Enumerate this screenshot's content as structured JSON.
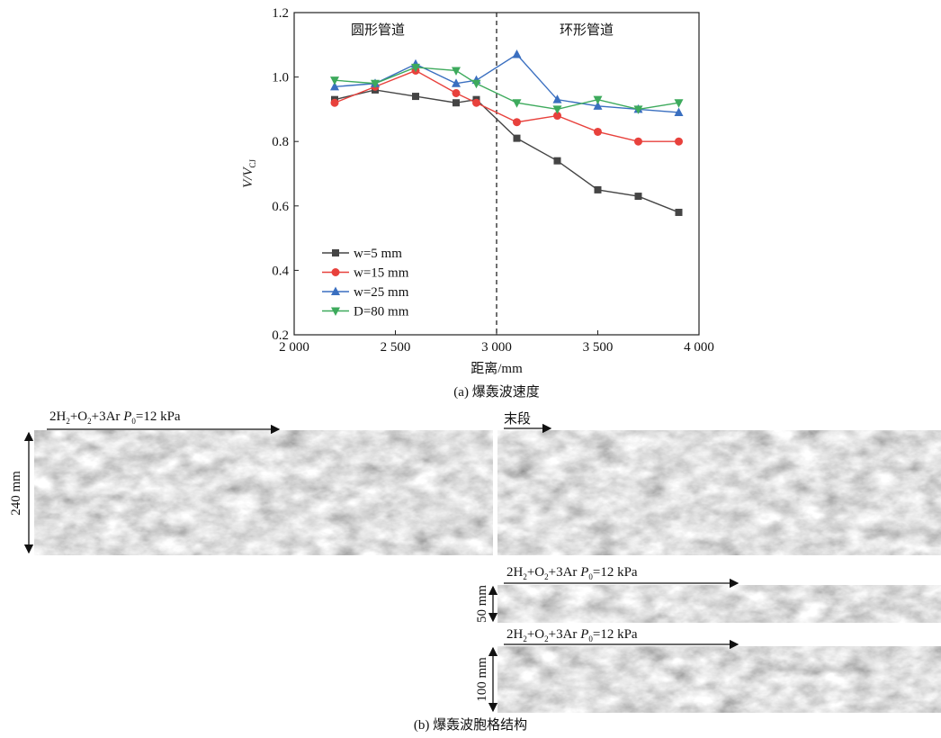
{
  "chart_data": {
    "type": "line",
    "x": [
      2200,
      2400,
      2600,
      2800,
      2900,
      3100,
      3300,
      3500,
      3700,
      3900
    ],
    "series": [
      {
        "name": "w=5 mm",
        "color": "#454545",
        "marker": "square",
        "values": [
          0.93,
          0.96,
          0.94,
          0.92,
          0.93,
          0.81,
          0.74,
          0.65,
          0.63,
          0.58
        ]
      },
      {
        "name": "w=15 mm",
        "color": "#e8413c",
        "marker": "circle",
        "values": [
          0.92,
          0.97,
          1.02,
          0.95,
          0.92,
          0.86,
          0.88,
          0.83,
          0.8,
          0.8
        ]
      },
      {
        "name": "w=25 mm",
        "color": "#3a6fc0",
        "marker": "triangle-up",
        "values": [
          0.97,
          0.98,
          1.04,
          0.98,
          0.99,
          1.07,
          0.93,
          0.91,
          0.9,
          0.89
        ]
      },
      {
        "name": "D=80 mm",
        "color": "#3daa5c",
        "marker": "triangle-down",
        "values": [
          0.99,
          0.98,
          1.03,
          1.02,
          0.98,
          0.92,
          0.9,
          0.93,
          0.9,
          0.92
        ]
      }
    ],
    "xlim": [
      2000,
      4000
    ],
    "xticks": [
      {
        "value": 2000,
        "label": "2 000"
      },
      {
        "value": 2500,
        "label": "2 500"
      },
      {
        "value": 3000,
        "label": "3 000"
      },
      {
        "value": 3500,
        "label": "3 500"
      },
      {
        "value": 4000,
        "label": "4 000"
      }
    ],
    "ylim": [
      0.2,
      1.2
    ],
    "yticks": [
      0.2,
      0.4,
      0.6,
      0.8,
      {
        "value": 1,
        "label": "1.0"
      },
      1.2
    ],
    "xlabel": "距离/mm",
    "ylabel": [
      "V/V",
      "CJ"
    ],
    "vline": 3000,
    "annotations": [
      "圆形管道",
      "环形管道"
    ],
    "legend": "lower left",
    "caption": "(a) 爆轰波速度"
  },
  "photos": [
    {
      "label": [
        "2H",
        "2",
        "+O",
        "2",
        "+3Ar  ",
        "P",
        "0",
        "=12 kPa"
      ],
      "size": "240 mm",
      "end_label": "末段"
    },
    {
      "label": [
        "2H",
        "2",
        "+O",
        "2",
        "+3Ar  ",
        "P",
        "0",
        "=12 kPa"
      ],
      "size": "50 mm"
    },
    {
      "label": [
        "2H",
        "2",
        "+O",
        "2",
        "+3Ar  ",
        "P",
        "0",
        "=12 kPa"
      ],
      "size": "100 mm"
    }
  ],
  "caption": "(b) 爆轰波胞格结构"
}
